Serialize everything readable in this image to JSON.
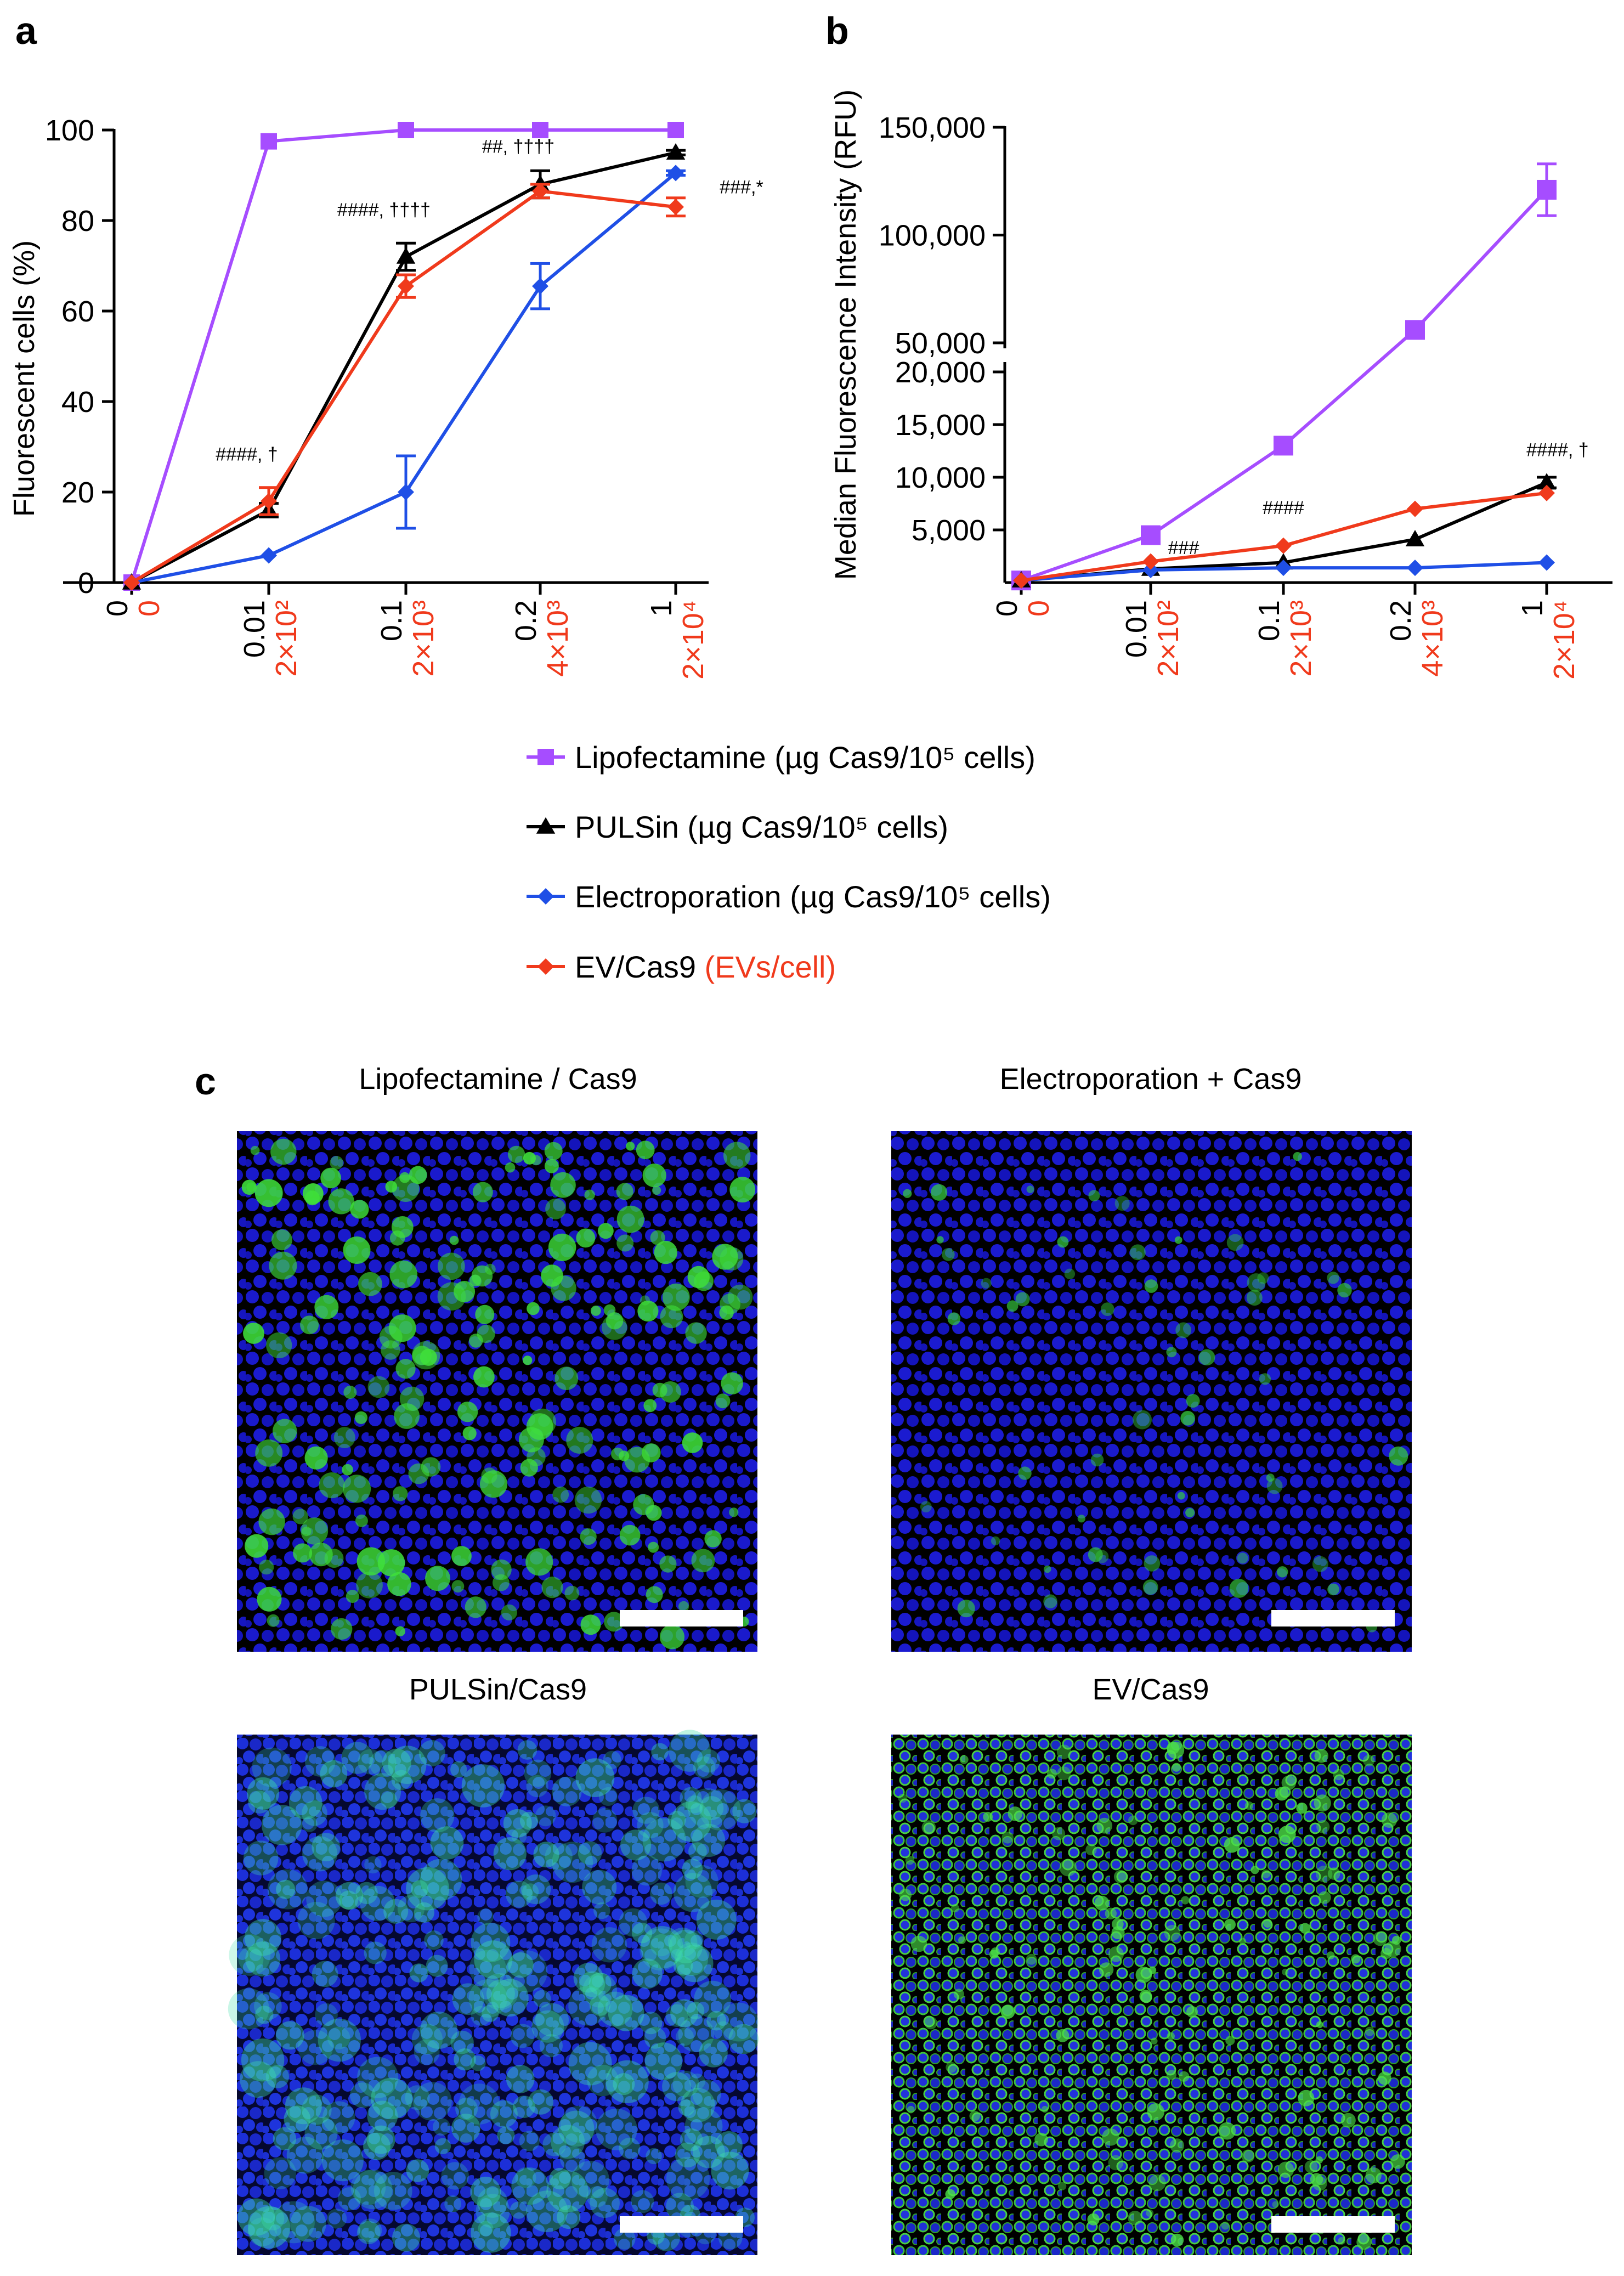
{
  "panels": {
    "a": "a",
    "b": "b",
    "c": "c"
  },
  "colors": {
    "Lipofectamine": "#a64dff",
    "PULSin": "#000000",
    "Electroporation": "#1f4fe6",
    "EV/Cas9": "#f03a1c",
    "red_label": "#f03a1c"
  },
  "x_categories": {
    "black": [
      "0",
      "0.01",
      "0.1",
      "0.2",
      "1"
    ],
    "red": [
      "0",
      "2×10²",
      "2×10³",
      "4×10³",
      "2×10⁴"
    ]
  },
  "legend": [
    {
      "series": "Lipofectamine",
      "label": "Lipofectamine (µg Cas9/10⁵ cells)",
      "marker": "square"
    },
    {
      "series": "PULSin",
      "label": "PULSin (µg Cas9/10⁵ cells)",
      "marker": "triangle"
    },
    {
      "series": "Electroporation",
      "label": "Electroporation (µg Cas9/10⁵ cells)",
      "marker": "diamond"
    },
    {
      "series": "EV/Cas9",
      "label": "EV/Cas9",
      "label_red": "(EVs/cell)",
      "marker": "diamond"
    }
  ],
  "chart_data": [
    {
      "panel": "a",
      "type": "line",
      "ylabel": "Fluorescent cells (%)",
      "ylim": [
        0,
        100
      ],
      "yticks": [
        "0",
        "20",
        "40",
        "60",
        "80",
        "100"
      ],
      "categories": [
        "0",
        "0.01",
        "0.1",
        "0.2",
        "1"
      ],
      "series": [
        {
          "name": "Lipofectamine",
          "values": [
            0,
            97.5,
            100,
            100,
            100
          ],
          "err": [
            0,
            0,
            0,
            0,
            0
          ]
        },
        {
          "name": "PULSin",
          "values": [
            0,
            16,
            72,
            88,
            95
          ],
          "err": [
            0,
            1.5,
            3,
            3,
            0.5
          ]
        },
        {
          "name": "Electroporation",
          "values": [
            0,
            6,
            20,
            65.5,
            90.5
          ],
          "err": [
            0,
            0,
            8,
            5,
            0.5
          ]
        },
        {
          "name": "EV/Cas9",
          "values": [
            0,
            18,
            65.5,
            86.5,
            83
          ],
          "err": [
            0,
            3,
            2.5,
            1.5,
            2
          ]
        }
      ],
      "annotations": [
        {
          "text": "####, †",
          "cat": 1,
          "y": 27
        },
        {
          "text": "####, ††††",
          "cat": 2,
          "y": 81
        },
        {
          "text": "##, ††††",
          "cat": 3,
          "y": 95
        },
        {
          "text": "###,*",
          "cat": 4,
          "y": 86
        }
      ]
    },
    {
      "panel": "b",
      "type": "line",
      "ylabel": "Median Fluorescence Intensity (RFU)",
      "broken_axis": true,
      "lower_ylim": [
        0,
        20000
      ],
      "upper_ylim": [
        50000,
        150000
      ],
      "lower_yticks": [
        "5,000",
        "10,000",
        "15,000",
        "20,000"
      ],
      "upper_yticks": [
        "50,000",
        "100,000",
        "150,000"
      ],
      "categories": [
        "0",
        "0.01",
        "0.1",
        "0.2",
        "1"
      ],
      "series": [
        {
          "name": "Lipofectamine",
          "values": [
            200,
            4500,
            13000,
            56000,
            121000
          ],
          "err": [
            0,
            0,
            0,
            0,
            12000
          ]
        },
        {
          "name": "PULSin",
          "values": [
            200,
            1300,
            1900,
            4100,
            9500
          ],
          "err": [
            0,
            0,
            0,
            0,
            500
          ]
        },
        {
          "name": "Electroporation",
          "values": [
            200,
            1200,
            1400,
            1400,
            1900
          ],
          "err": [
            0,
            0,
            0,
            0,
            0
          ]
        },
        {
          "name": "EV/Cas9",
          "values": [
            200,
            2000,
            3500,
            7000,
            8500
          ],
          "err": [
            0,
            0,
            0,
            0,
            0
          ]
        }
      ],
      "annotations": [
        {
          "text": "###",
          "cat": 1,
          "y": 2700
        },
        {
          "text": "####",
          "cat": 2,
          "y": 6500
        },
        {
          "text": "####, †",
          "cat": 4,
          "y": 12000
        }
      ]
    }
  ],
  "images": [
    {
      "title": "Lipofectamine / Cas9",
      "style": "sparse-bright"
    },
    {
      "title": "Electroporation + Cas9",
      "style": "sparse-dim"
    },
    {
      "title": "PULSin/Cas9",
      "style": "dense-cyan"
    },
    {
      "title": "EV/Cas9",
      "style": "dense-green"
    }
  ]
}
